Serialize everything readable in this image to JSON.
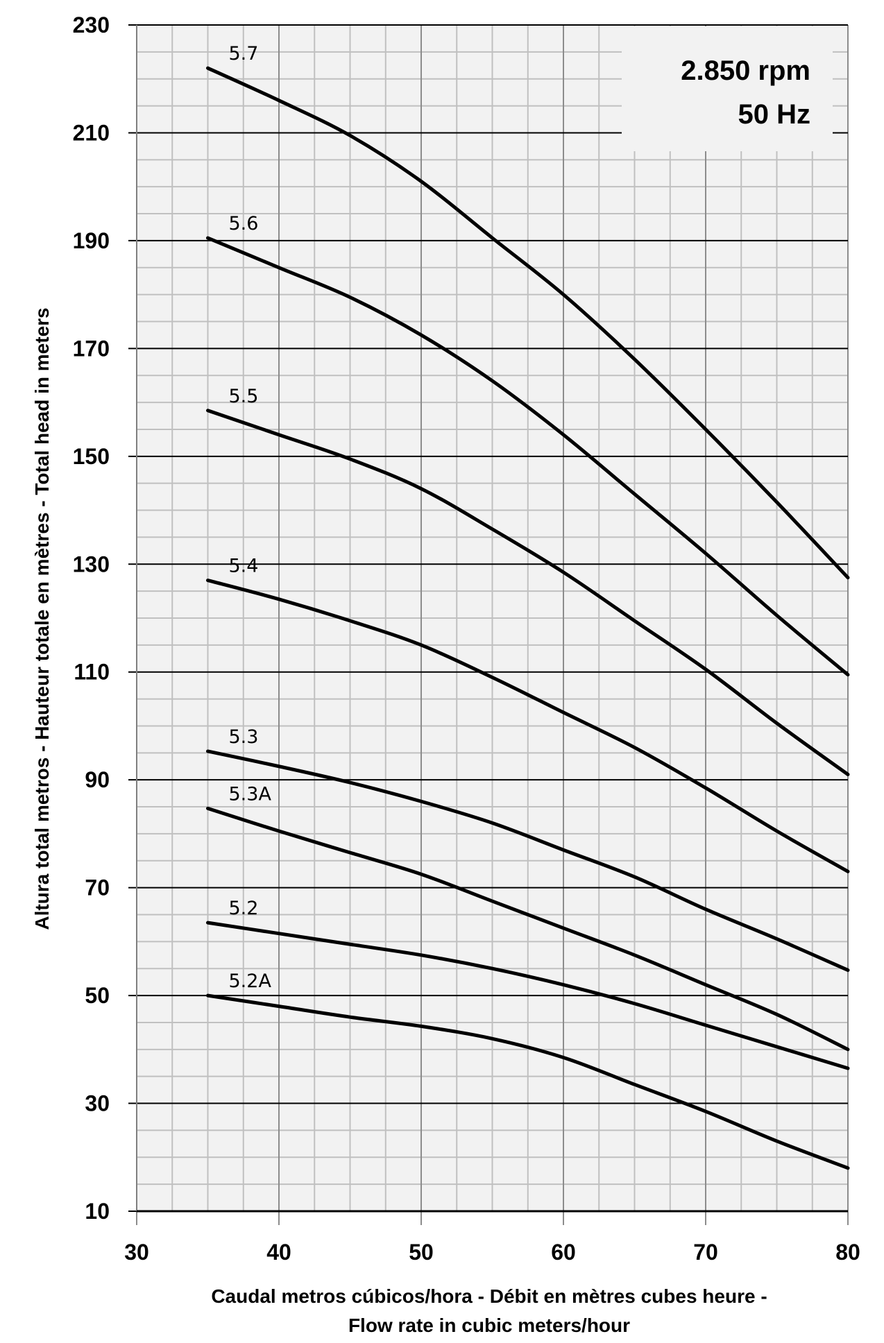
{
  "chart_data": {
    "type": "line",
    "title": "",
    "annotation": [
      "2.850 rpm",
      "50 Hz"
    ],
    "xlabel": [
      "Caudal metros cúbicos/hora - Débit en mètres cubes heure -",
      "Flow rate in cubic meters/hour"
    ],
    "ylabel": "Altura total metros - Hauteur totale en mètres - Total head in meters",
    "xlim": [
      30,
      80
    ],
    "ylim": [
      10,
      230
    ],
    "xticks": [
      "30",
      "40",
      "50",
      "60",
      "70",
      "80"
    ],
    "yticks": [
      "10",
      "30",
      "50",
      "70",
      "90",
      "110",
      "130",
      "150",
      "170",
      "190",
      "210",
      "230"
    ],
    "grid": true,
    "x": [
      35,
      40,
      45,
      50,
      55,
      60,
      65,
      70,
      75,
      80
    ],
    "series": [
      {
        "name": "5.7",
        "values": [
          222,
          216,
          209.5,
          201,
          190.5,
          180,
          168,
          155,
          141.5,
          127.5
        ]
      },
      {
        "name": "5.6",
        "values": [
          190.5,
          185,
          179.5,
          172.5,
          164,
          154,
          143,
          132,
          120.5,
          109.5
        ]
      },
      {
        "name": "5.5",
        "values": [
          158.5,
          154,
          149.5,
          144,
          136.5,
          128.5,
          119.5,
          110.5,
          100.5,
          91
        ]
      },
      {
        "name": "5.4",
        "values": [
          127,
          123.5,
          119.5,
          115,
          109,
          102.5,
          96,
          88.5,
          80.5,
          73
        ]
      },
      {
        "name": "5.3",
        "values": [
          95.3,
          92.5,
          89.5,
          86,
          82,
          77,
          72,
          66,
          60.5,
          54.7
        ]
      },
      {
        "name": "5.3A",
        "values": [
          84.7,
          80.5,
          76.5,
          72.5,
          67.5,
          62.5,
          57.5,
          52,
          46.5,
          40
        ]
      },
      {
        "name": "5.2",
        "values": [
          63.5,
          61.5,
          59.5,
          57.5,
          55,
          52,
          48.5,
          44.5,
          40.5,
          36.5
        ]
      },
      {
        "name": "5.2A",
        "values": [
          50,
          48,
          46,
          44.3,
          42,
          38.5,
          33.5,
          28.5,
          23,
          18
        ]
      }
    ],
    "colors": {
      "background": "#f2f2f2",
      "minor_grid": "#c0c0c0",
      "major_x_grid": "#8c8c8c",
      "major_y_grid": "#000000",
      "line": "#000000"
    }
  }
}
